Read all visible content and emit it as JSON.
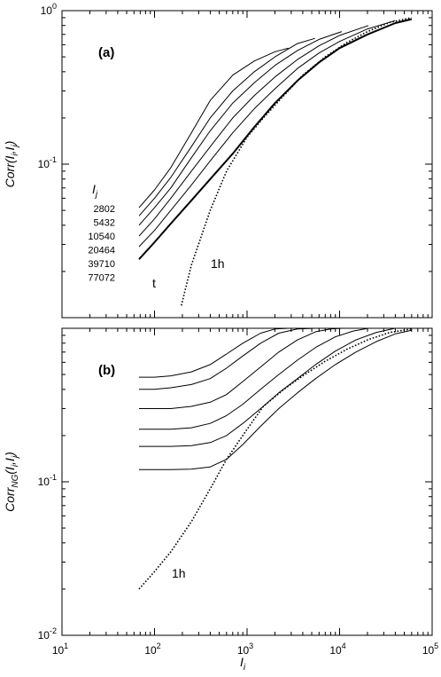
{
  "chart_data": [
    {
      "type": "line",
      "panel_label": "(a)",
      "xscale": "log",
      "yscale": "log",
      "xlim": [
        10,
        100000
      ],
      "ylim": [
        0.01,
        1
      ],
      "ytick_labels": [
        {
          "value": 0.1,
          "base": "10",
          "exp": "-1"
        },
        {
          "value": 1,
          "base": "10",
          "exp": "0"
        }
      ],
      "ylabel": {
        "pre": "Corr(",
        "v1": "I",
        "s1": "i",
        "sep": ",",
        "v2": "I",
        "s2": "j",
        "post": ")"
      },
      "legend_header": {
        "v": "I",
        "s": "j"
      },
      "legend_values": [
        "2802",
        "5432",
        "10540",
        "20464",
        "39710",
        "77072"
      ],
      "series": [
        {
          "label": "2802",
          "style": "solid",
          "x": [
            68,
            100,
            150,
            250,
            400,
            700,
            1200,
            2000,
            2802
          ],
          "y": [
            0.052,
            0.068,
            0.095,
            0.16,
            0.26,
            0.38,
            0.47,
            0.54,
            0.57
          ]
        },
        {
          "label": "5432",
          "style": "solid",
          "x": [
            68,
            100,
            150,
            250,
            400,
            700,
            1200,
            2000,
            3500,
            5432
          ],
          "y": [
            0.046,
            0.06,
            0.082,
            0.13,
            0.2,
            0.3,
            0.4,
            0.5,
            0.61,
            0.66
          ]
        },
        {
          "label": "10540",
          "style": "solid",
          "x": [
            68,
            100,
            150,
            250,
            400,
            700,
            1200,
            2000,
            3500,
            6000,
            10540
          ],
          "y": [
            0.04,
            0.052,
            0.07,
            0.11,
            0.165,
            0.25,
            0.34,
            0.44,
            0.55,
            0.65,
            0.73
          ]
        },
        {
          "label": "20464",
          "style": "solid",
          "x": [
            68,
            100,
            150,
            250,
            400,
            700,
            1200,
            2000,
            3500,
            6000,
            10000,
            20464
          ],
          "y": [
            0.034,
            0.044,
            0.06,
            0.09,
            0.13,
            0.2,
            0.28,
            0.37,
            0.48,
            0.59,
            0.69,
            0.8
          ]
        },
        {
          "label": "39710",
          "style": "solid",
          "x": [
            68,
            100,
            150,
            250,
            400,
            700,
            1200,
            2000,
            3500,
            6000,
            10000,
            20000,
            39710
          ],
          "y": [
            0.029,
            0.037,
            0.05,
            0.073,
            0.105,
            0.16,
            0.23,
            0.31,
            0.42,
            0.53,
            0.63,
            0.76,
            0.86
          ]
        },
        {
          "label": "77072",
          "annotation": "t",
          "style": "solid-thick",
          "x": [
            68,
            100,
            150,
            250,
            400,
            700,
            1200,
            2000,
            3500,
            6000,
            10000,
            20000,
            40000,
            60000
          ],
          "y": [
            0.024,
            0.031,
            0.041,
            0.058,
            0.08,
            0.117,
            0.175,
            0.25,
            0.35,
            0.46,
            0.57,
            0.7,
            0.83,
            0.88
          ]
        },
        {
          "label": "1h",
          "annotation": "1h",
          "style": "dotted",
          "x": [
            195,
            250,
            400,
            600,
            1000,
            1500,
            2500,
            4000,
            7000,
            12000,
            20000,
            35000,
            60000
          ],
          "y": [
            0.012,
            0.022,
            0.05,
            0.09,
            0.15,
            0.2,
            0.28,
            0.38,
            0.5,
            0.62,
            0.73,
            0.84,
            0.9
          ]
        }
      ]
    },
    {
      "type": "line",
      "panel_label": "(b)",
      "xscale": "log",
      "yscale": "log",
      "xlim": [
        10,
        100000
      ],
      "ylim": [
        0.01,
        1
      ],
      "xtick_labels": [
        {
          "value": 10,
          "base": "10",
          "exp": "1"
        },
        {
          "value": 100,
          "base": "10",
          "exp": "2"
        },
        {
          "value": 1000,
          "base": "10",
          "exp": "3"
        },
        {
          "value": 10000,
          "base": "10",
          "exp": "4"
        },
        {
          "value": 100000,
          "base": "10",
          "exp": "5"
        }
      ],
      "ytick_labels": [
        {
          "value": 0.01,
          "base": "10",
          "exp": "-2"
        },
        {
          "value": 0.1,
          "base": "10",
          "exp": "-1"
        }
      ],
      "xlabel": {
        "v": "I",
        "s": "i"
      },
      "ylabel": {
        "pre": "Corr",
        "sub_pre": "NG",
        "mid": "(",
        "v1": "I",
        "s1": "i",
        "sep": ",",
        "v2": "I",
        "s2": "j",
        "post": ")"
      },
      "series": [
        {
          "label": "2802",
          "style": "solid",
          "x": [
            68,
            100,
            150,
            250,
            400,
            600,
            900,
            1400,
            2000,
            2802
          ],
          "y": [
            0.48,
            0.48,
            0.49,
            0.52,
            0.58,
            0.68,
            0.8,
            0.93,
            0.99,
            1.0
          ]
        },
        {
          "label": "5432",
          "style": "solid",
          "x": [
            68,
            100,
            150,
            250,
            400,
            600,
            900,
            1400,
            2200,
            3500,
            5432
          ],
          "y": [
            0.4,
            0.4,
            0.41,
            0.43,
            0.47,
            0.55,
            0.66,
            0.8,
            0.93,
            0.99,
            1.0
          ]
        },
        {
          "label": "10540",
          "style": "solid",
          "x": [
            68,
            100,
            150,
            250,
            400,
            600,
            900,
            1400,
            2200,
            3500,
            5500,
            8000,
            10540
          ],
          "y": [
            0.3,
            0.3,
            0.3,
            0.31,
            0.33,
            0.37,
            0.45,
            0.56,
            0.7,
            0.84,
            0.95,
            0.99,
            1.0
          ]
        },
        {
          "label": "20464",
          "style": "solid",
          "x": [
            68,
            100,
            150,
            250,
            400,
            600,
            900,
            1400,
            2200,
            3500,
            5500,
            9000,
            14000,
            20464
          ],
          "y": [
            0.22,
            0.22,
            0.22,
            0.225,
            0.24,
            0.27,
            0.32,
            0.4,
            0.5,
            0.62,
            0.75,
            0.88,
            0.96,
            1.0
          ]
        },
        {
          "label": "39710",
          "style": "solid",
          "x": [
            68,
            100,
            150,
            250,
            400,
            600,
            900,
            1400,
            2200,
            3500,
            5500,
            9000,
            15000,
            25000,
            39710
          ],
          "y": [
            0.17,
            0.17,
            0.17,
            0.172,
            0.18,
            0.2,
            0.24,
            0.3,
            0.38,
            0.47,
            0.58,
            0.71,
            0.84,
            0.94,
            1.0
          ]
        },
        {
          "label": "77072",
          "style": "solid",
          "x": [
            68,
            100,
            150,
            250,
            400,
            600,
            900,
            1400,
            2200,
            3500,
            5500,
            9000,
            15000,
            25000,
            40000,
            60000
          ],
          "y": [
            0.12,
            0.12,
            0.12,
            0.121,
            0.125,
            0.14,
            0.175,
            0.23,
            0.3,
            0.38,
            0.47,
            0.58,
            0.7,
            0.82,
            0.92,
            0.97
          ]
        },
        {
          "label": "1h",
          "annotation": "1h",
          "style": "dotted",
          "x": [
            68,
            100,
            150,
            250,
            400,
            600,
            1000,
            1500,
            2500,
            4000,
            7000,
            12000,
            20000,
            35000,
            60000
          ],
          "y": [
            0.02,
            0.026,
            0.035,
            0.055,
            0.09,
            0.14,
            0.22,
            0.31,
            0.4,
            0.49,
            0.61,
            0.73,
            0.84,
            0.94,
            0.99
          ]
        }
      ]
    }
  ]
}
